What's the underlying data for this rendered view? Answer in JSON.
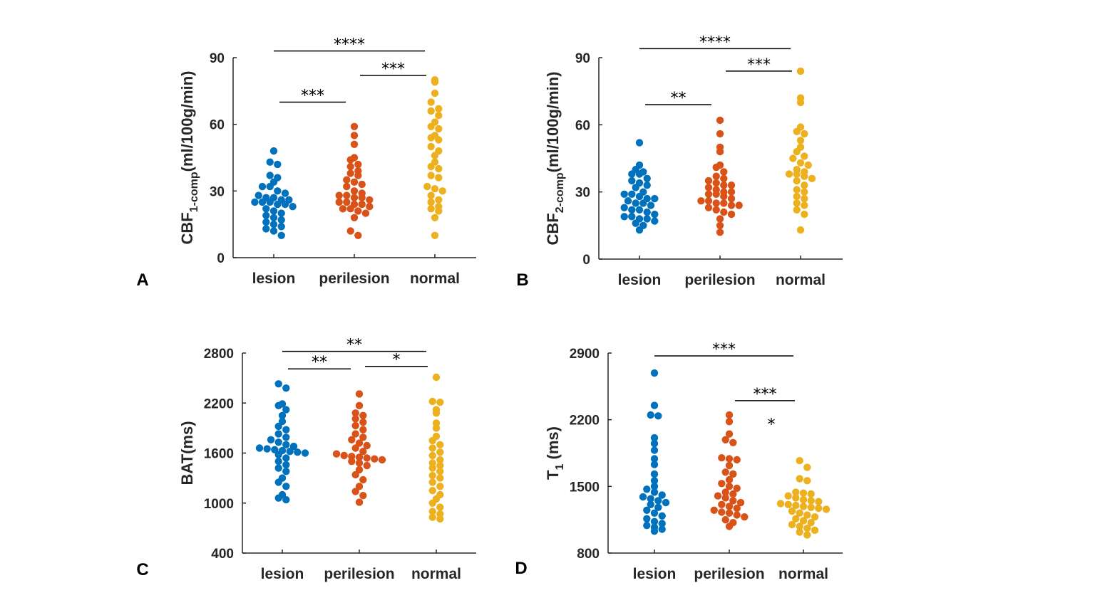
{
  "chart_data": [
    {
      "type": "scatter",
      "panel_label": "A",
      "ylabel": "CBF",
      "ylabel_sub": "1-comp",
      "ylabel_unit": "(ml/100g/min)",
      "ylim": [
        0,
        90
      ],
      "yticks": [
        "0",
        "30",
        "60",
        "90"
      ],
      "categories": [
        "lesion",
        "perilesion",
        "normal"
      ],
      "colors": [
        "#0072BD",
        "#D95319",
        "#EDB120"
      ],
      "series": [
        {
          "name": "lesion",
          "values": [
            48,
            43,
            42,
            37,
            36,
            34,
            32,
            32,
            30,
            29,
            28,
            27,
            27,
            26,
            26,
            25,
            25,
            25,
            24,
            24,
            23,
            22,
            21,
            20,
            19,
            18,
            17,
            16,
            15,
            14,
            13,
            12,
            10
          ]
        },
        {
          "name": "perilesion",
          "values": [
            59,
            55,
            51,
            45,
            44,
            42,
            41,
            39,
            38,
            37,
            35,
            34,
            33,
            32,
            30,
            29,
            28,
            28,
            27,
            27,
            26,
            25,
            25,
            24,
            24,
            23,
            22,
            22,
            21,
            20,
            18,
            12,
            10
          ]
        },
        {
          "name": "normal",
          "values": [
            80,
            79,
            74,
            70,
            67,
            66,
            64,
            61,
            59,
            58,
            55,
            54,
            53,
            50,
            48,
            46,
            43,
            41,
            40,
            37,
            36,
            32,
            31,
            30,
            28,
            26,
            25,
            23,
            22,
            21,
            18,
            10
          ]
        }
      ],
      "significance": [
        {
          "from": 0,
          "to": 2,
          "label": "****",
          "y": 93
        },
        {
          "from": 0,
          "to": 1,
          "label": "***",
          "y": 70
        },
        {
          "from": 1,
          "to": 2,
          "label": "***",
          "y": 82
        }
      ]
    },
    {
      "type": "scatter",
      "panel_label": "B",
      "ylabel": "CBF",
      "ylabel_sub": "2-comp",
      "ylabel_unit": "(ml/100g/min)",
      "ylim": [
        0,
        90
      ],
      "yticks": [
        "0",
        "30",
        "60",
        "90"
      ],
      "categories": [
        "lesion",
        "perilesion",
        "normal"
      ],
      "colors": [
        "#0072BD",
        "#D95319",
        "#EDB120"
      ],
      "series": [
        {
          "name": "lesion",
          "values": [
            52,
            42,
            40,
            39,
            38,
            38,
            36,
            35,
            34,
            33,
            32,
            30,
            29,
            29,
            28,
            27,
            27,
            26,
            25,
            25,
            24,
            23,
            22,
            22,
            21,
            20,
            19,
            19,
            18,
            18,
            17,
            16,
            15,
            13
          ]
        },
        {
          "name": "perilesion",
          "values": [
            62,
            56,
            50,
            48,
            42,
            41,
            39,
            37,
            36,
            35,
            34,
            33,
            33,
            32,
            31,
            30,
            30,
            29,
            29,
            28,
            27,
            26,
            26,
            25,
            25,
            24,
            24,
            23,
            22,
            21,
            20,
            18,
            15,
            12
          ]
        },
        {
          "name": "normal",
          "values": [
            84,
            72,
            70,
            59,
            57,
            56,
            53,
            50,
            48,
            46,
            45,
            43,
            42,
            40,
            39,
            38,
            38,
            37,
            36,
            35,
            33,
            31,
            30,
            28,
            27,
            25,
            24,
            22,
            20,
            13
          ]
        }
      ],
      "significance": [
        {
          "from": 0,
          "to": 2,
          "label": "****",
          "y": 94
        },
        {
          "from": 0,
          "to": 1,
          "label": "**",
          "y": 69
        },
        {
          "from": 1,
          "to": 2,
          "label": "***",
          "y": 84
        }
      ]
    },
    {
      "type": "scatter",
      "panel_label": "C",
      "ylabel": "BAT(ms)",
      "ylim": [
        400,
        2800
      ],
      "yticks": [
        "400",
        "1000",
        "1600",
        "2200",
        "2800"
      ],
      "categories": [
        "lesion",
        "perilesion",
        "normal"
      ],
      "colors": [
        "#0072BD",
        "#D95319",
        "#EDB120"
      ],
      "series": [
        {
          "name": "lesion",
          "values": [
            2430,
            2380,
            2190,
            2170,
            2120,
            2050,
            1980,
            1920,
            1880,
            1830,
            1790,
            1760,
            1730,
            1700,
            1680,
            1660,
            1650,
            1640,
            1630,
            1620,
            1610,
            1600,
            1580,
            1540,
            1500,
            1460,
            1420,
            1380,
            1300,
            1250,
            1200,
            1100,
            1060,
            1040
          ]
        },
        {
          "name": "perilesion",
          "values": [
            2310,
            2170,
            2080,
            2050,
            2010,
            1970,
            1930,
            1880,
            1830,
            1790,
            1760,
            1720,
            1690,
            1660,
            1620,
            1590,
            1570,
            1560,
            1550,
            1540,
            1530,
            1520,
            1500,
            1480,
            1450,
            1400,
            1340,
            1280,
            1200,
            1140,
            1090,
            1010
          ]
        },
        {
          "name": "normal",
          "values": [
            2510,
            2220,
            2210,
            2120,
            2080,
            1960,
            1900,
            1800,
            1750,
            1700,
            1660,
            1610,
            1570,
            1520,
            1480,
            1450,
            1420,
            1380,
            1330,
            1300,
            1250,
            1200,
            1150,
            1100,
            1050,
            1000,
            950,
            900,
            870,
            830,
            810
          ]
        }
      ],
      "significance": [
        {
          "from": 0,
          "to": 2,
          "label": "**",
          "y": 2820
        },
        {
          "from": 0,
          "to": 1,
          "label": "**",
          "y": 2610
        },
        {
          "from": 1,
          "to": 2,
          "label": "*",
          "y": 2640
        }
      ]
    },
    {
      "type": "scatter",
      "panel_label": "D",
      "ylabel": "T",
      "ylabel_sub": "1",
      "ylabel_unit": " (ms)",
      "ylim": [
        800,
        2900
      ],
      "yticks": [
        "800",
        "1500",
        "2200",
        "2900"
      ],
      "categories": [
        "lesion",
        "perilesion",
        "normal"
      ],
      "colors": [
        "#0072BD",
        "#D95319",
        "#EDB120"
      ],
      "series": [
        {
          "name": "lesion",
          "values": [
            2690,
            2350,
            2250,
            2240,
            2010,
            1950,
            1880,
            1790,
            1730,
            1630,
            1560,
            1500,
            1470,
            1440,
            1410,
            1390,
            1370,
            1350,
            1330,
            1310,
            1280,
            1250,
            1220,
            1190,
            1160,
            1130,
            1110,
            1090,
            1070,
            1050,
            1030
          ]
        },
        {
          "name": "perilesion",
          "values": [
            2250,
            2180,
            2050,
            1990,
            1960,
            1800,
            1790,
            1780,
            1720,
            1650,
            1630,
            1570,
            1530,
            1500,
            1480,
            1440,
            1420,
            1400,
            1380,
            1350,
            1330,
            1310,
            1290,
            1270,
            1250,
            1230,
            1220,
            1200,
            1180,
            1150,
            1120,
            1080
          ]
        },
        {
          "name": "normal",
          "values": [
            1770,
            1700,
            1580,
            1560,
            1440,
            1430,
            1420,
            1400,
            1380,
            1360,
            1350,
            1340,
            1320,
            1310,
            1300,
            1290,
            1280,
            1270,
            1260,
            1240,
            1220,
            1200,
            1180,
            1160,
            1140,
            1120,
            1100,
            1080,
            1060,
            1040,
            1020,
            990
          ]
        }
      ],
      "significance": [
        {
          "from": 0,
          "to": 2,
          "label": "***",
          "y": 2870
        },
        {
          "from": 1,
          "to": 2,
          "label": "***",
          "y": 2400
        },
        {
          "from": null,
          "to": 2,
          "label": "*",
          "y": 2200,
          "type": "marker"
        }
      ]
    }
  ]
}
